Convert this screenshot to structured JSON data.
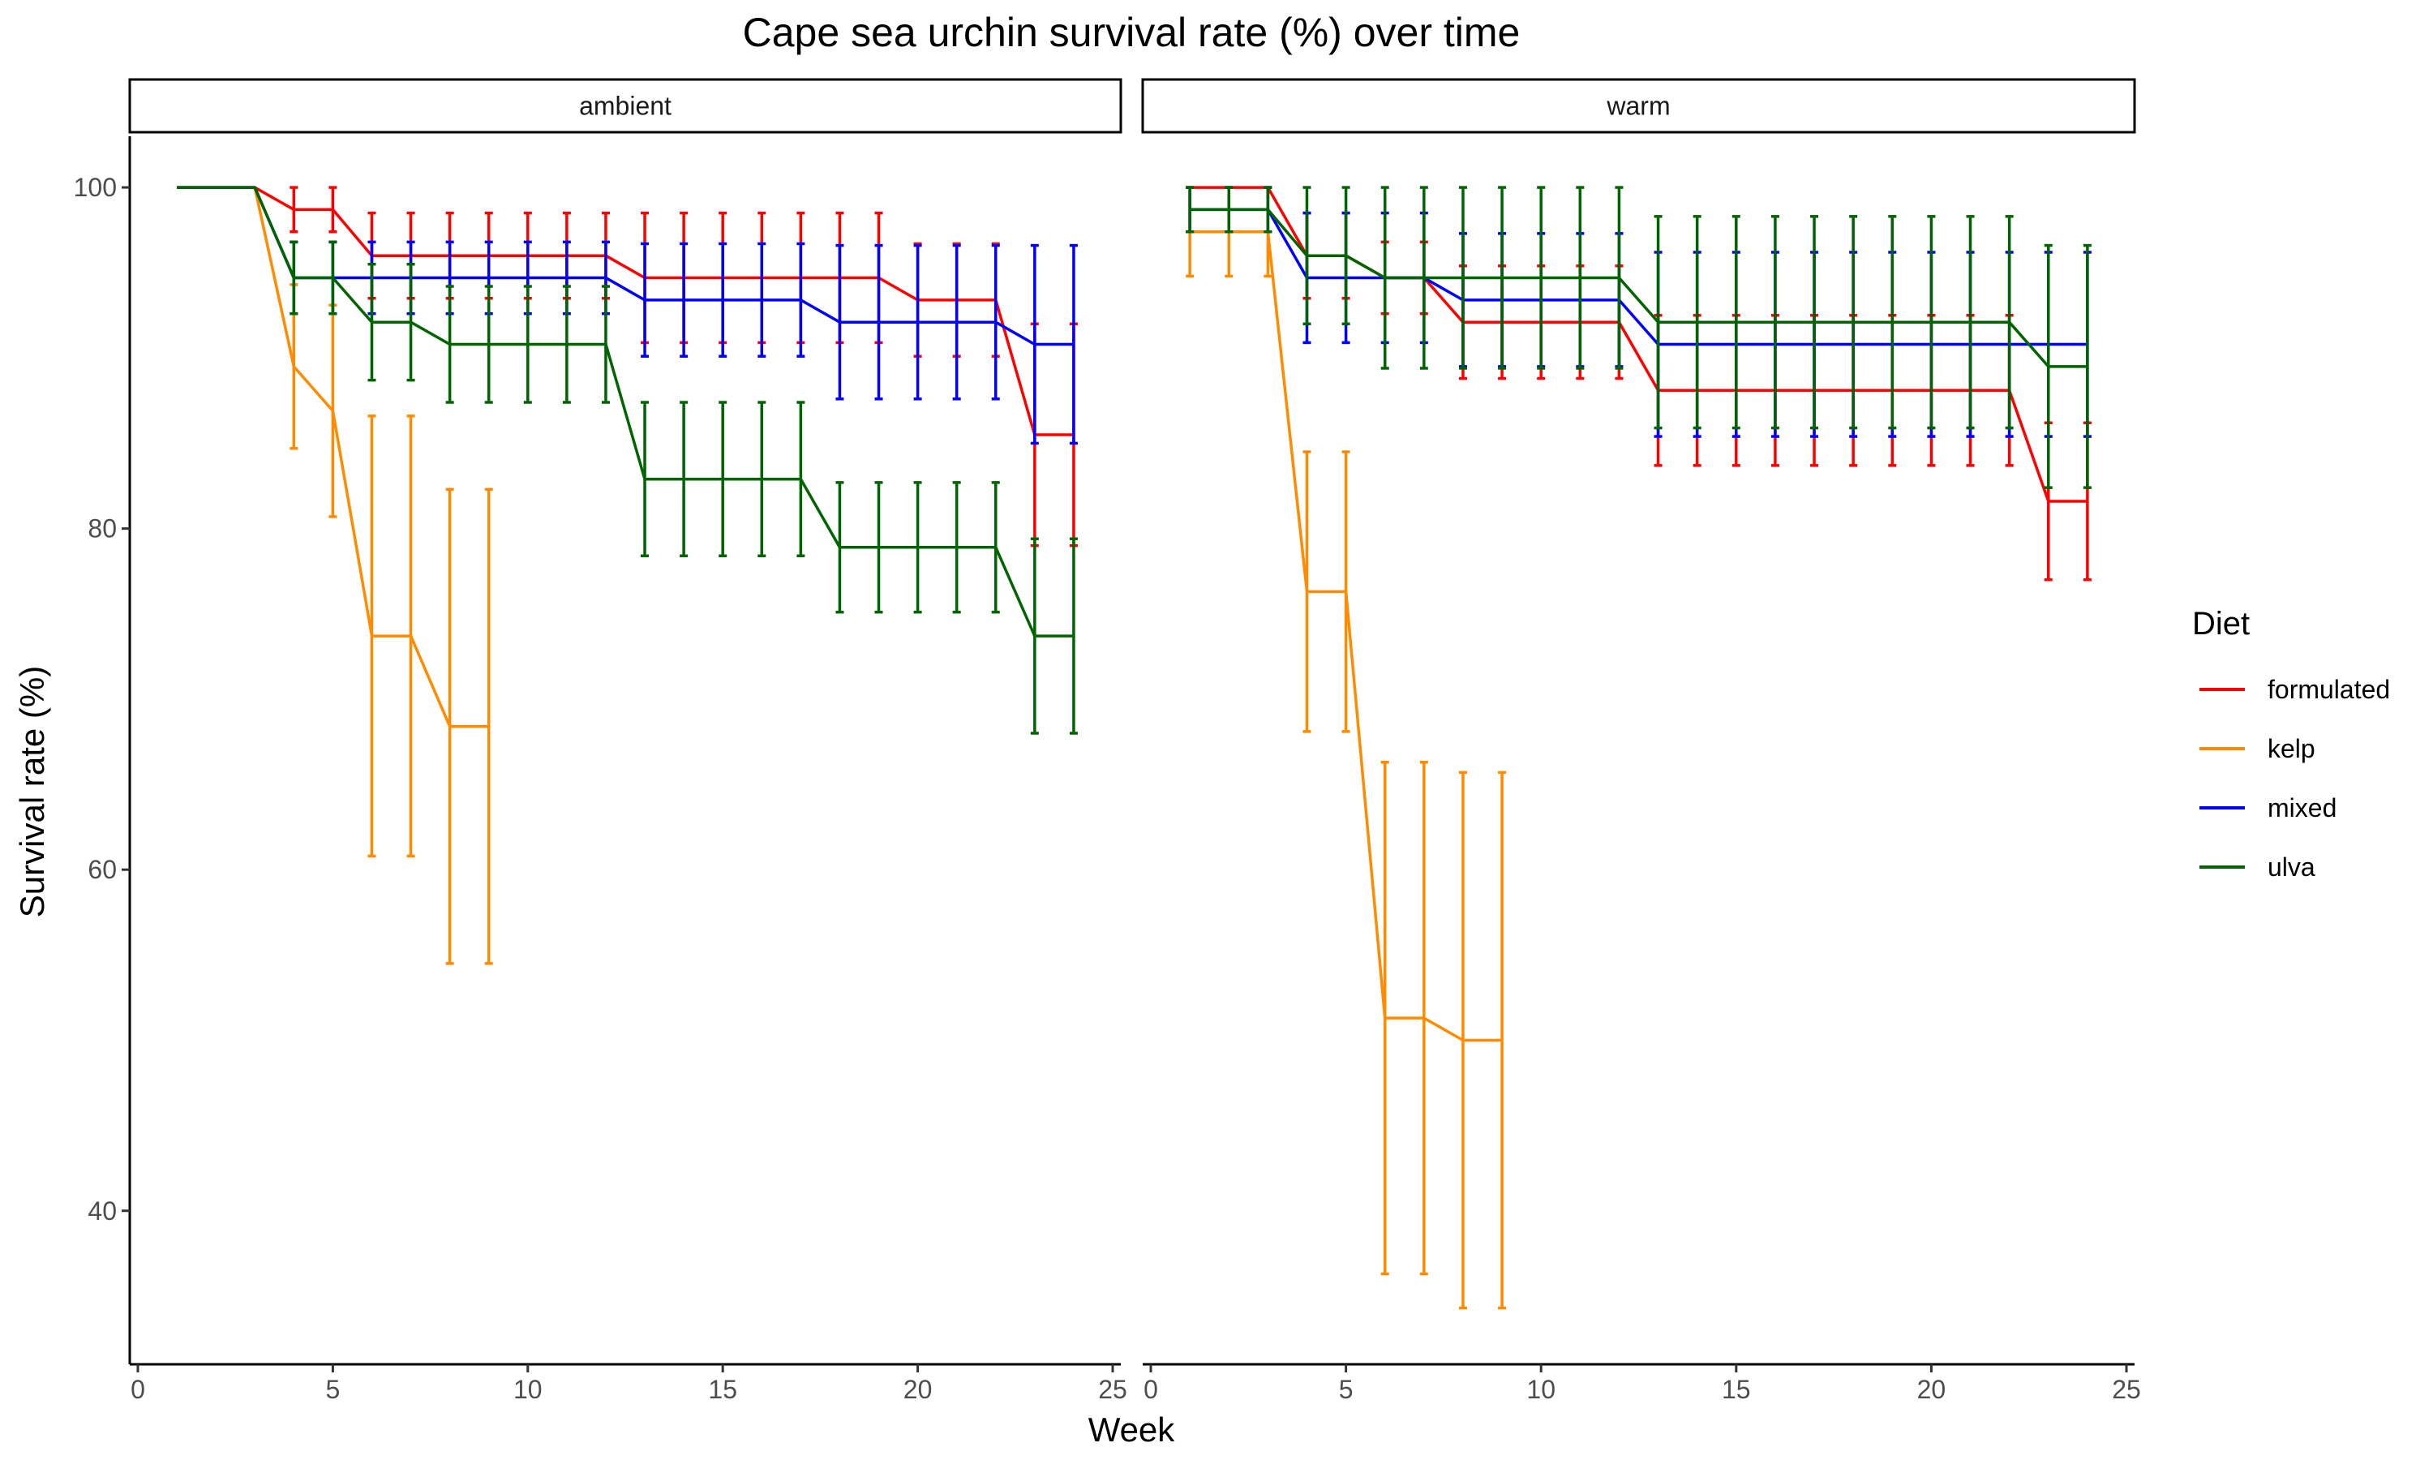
{
  "chart_data": {
    "type": "line",
    "title": "Cape sea urchin survival rate (%) over time",
    "xlabel": "Week",
    "ylabel": "Survival rate (%)",
    "xlim": [
      0,
      25
    ],
    "ylim": [
      31,
      103
    ],
    "x_ticks": [
      "0",
      "5",
      "10",
      "15",
      "20",
      "25"
    ],
    "y_ticks": [
      "40",
      "60",
      "80",
      "100"
    ],
    "grid": false,
    "legend": {
      "title": "Diet",
      "position": "right",
      "entries": [
        "formulated",
        "kelp",
        "mixed",
        "ulva"
      ]
    },
    "colors": {
      "formulated": "#ff0000",
      "kelp": "#ff8c00",
      "mixed": "#0000ff",
      "ulva": "#006400"
    },
    "panels": [
      {
        "label": "ambient",
        "series": [
          {
            "name": "formulated",
            "x": [
              1,
              2,
              3,
              4,
              5,
              6,
              7,
              8,
              9,
              10,
              11,
              12,
              13,
              14,
              15,
              16,
              17,
              18,
              19,
              20,
              21,
              22,
              23,
              24
            ],
            "y": [
              100,
              100,
              100,
              98.7,
              98.7,
              96,
              96,
              96,
              96,
              96,
              96,
              96,
              94.7,
              94.7,
              94.7,
              94.7,
              94.7,
              94.7,
              94.7,
              93.4,
              93.4,
              93.4,
              85.5,
              85.5
            ],
            "err": [
              0,
              0,
              0,
              1.3,
              1.3,
              2.5,
              2.5,
              2.5,
              2.5,
              2.5,
              2.5,
              2.5,
              3.8,
              3.8,
              3.8,
              3.8,
              3.8,
              3.8,
              3.8,
              3.3,
              3.3,
              3.3,
              6.5,
              6.5
            ]
          },
          {
            "name": "kelp",
            "x": [
              1,
              2,
              3,
              4,
              5,
              6,
              7,
              8,
              9
            ],
            "y": [
              100,
              100,
              100,
              89.5,
              86.9,
              73.7,
              73.7,
              68.4,
              68.4
            ],
            "err": [
              0,
              0,
              0,
              4.8,
              6.2,
              12.9,
              12.9,
              13.9,
              13.9
            ]
          },
          {
            "name": "mixed",
            "x": [
              1,
              2,
              3,
              4,
              5,
              6,
              7,
              8,
              9,
              10,
              11,
              12,
              13,
              14,
              15,
              16,
              17,
              18,
              19,
              20,
              21,
              22,
              23,
              24
            ],
            "y": [
              100,
              100,
              100,
              94.7,
              94.7,
              94.7,
              94.7,
              94.7,
              94.7,
              94.7,
              94.7,
              94.7,
              93.4,
              93.4,
              93.4,
              93.4,
              93.4,
              92.1,
              92.1,
              92.1,
              92.1,
              92.1,
              90.8,
              90.8
            ],
            "err": [
              0,
              0,
              0,
              2.1,
              2.1,
              2.1,
              2.1,
              2.1,
              2.1,
              2.1,
              2.1,
              2.1,
              3.3,
              3.3,
              3.3,
              3.3,
              3.3,
              4.5,
              4.5,
              4.5,
              4.5,
              4.5,
              5.8,
              5.8
            ]
          },
          {
            "name": "ulva",
            "x": [
              1,
              2,
              3,
              4,
              5,
              6,
              7,
              8,
              9,
              10,
              11,
              12,
              13,
              14,
              15,
              16,
              17,
              18,
              19,
              20,
              21,
              22,
              23,
              24
            ],
            "y": [
              100,
              100,
              100,
              94.7,
              94.7,
              92.1,
              92.1,
              90.8,
              90.8,
              90.8,
              90.8,
              90.8,
              82.9,
              82.9,
              82.9,
              82.9,
              82.9,
              78.9,
              78.9,
              78.9,
              78.9,
              78.9,
              73.7,
              73.7
            ],
            "err": [
              0,
              0,
              0,
              2.1,
              2.1,
              3.4,
              3.4,
              3.4,
              3.4,
              3.4,
              3.4,
              3.4,
              4.5,
              4.5,
              4.5,
              4.5,
              4.5,
              3.8,
              3.8,
              3.8,
              3.8,
              3.8,
              5.7,
              5.7
            ]
          }
        ]
      },
      {
        "label": "warm",
        "series": [
          {
            "name": "formulated",
            "x": [
              1,
              2,
              3,
              4,
              5,
              6,
              7,
              8,
              9,
              10,
              11,
              12,
              13,
              14,
              15,
              16,
              17,
              18,
              19,
              20,
              21,
              22,
              23,
              24
            ],
            "y": [
              100,
              100,
              100,
              96,
              96,
              94.7,
              94.7,
              92.1,
              92.1,
              92.1,
              92.1,
              92.1,
              88.1,
              88.1,
              88.1,
              88.1,
              88.1,
              88.1,
              88.1,
              88.1,
              88.1,
              88.1,
              81.6,
              81.6
            ],
            "err": [
              0,
              0,
              0,
              2.5,
              2.5,
              2.1,
              2.1,
              3.3,
              3.3,
              3.3,
              3.3,
              3.3,
              4.4,
              4.4,
              4.4,
              4.4,
              4.4,
              4.4,
              4.4,
              4.4,
              4.4,
              4.4,
              4.6,
              4.6
            ]
          },
          {
            "name": "kelp",
            "x": [
              1,
              2,
              3,
              4,
              5,
              6,
              7,
              8,
              9
            ],
            "y": [
              97.4,
              97.4,
              97.4,
              76.3,
              76.3,
              51.3,
              51.3,
              50,
              50
            ],
            "err": [
              2.6,
              2.6,
              2.6,
              8.2,
              8.2,
              15,
              15,
              15.7,
              15.7
            ]
          },
          {
            "name": "mixed",
            "x": [
              1,
              2,
              3,
              4,
              5,
              6,
              7,
              8,
              9,
              10,
              11,
              12,
              13,
              14,
              15,
              16,
              17,
              18,
              19,
              20,
              21,
              22,
              23,
              24
            ],
            "y": [
              98.7,
              98.7,
              98.7,
              94.7,
              94.7,
              94.7,
              94.7,
              93.4,
              93.4,
              93.4,
              93.4,
              93.4,
              90.8,
              90.8,
              90.8,
              90.8,
              90.8,
              90.8,
              90.8,
              90.8,
              90.8,
              90.8,
              90.8,
              90.8
            ],
            "err": [
              1.3,
              1.3,
              1.3,
              3.8,
              3.8,
              3.8,
              3.8,
              3.9,
              3.9,
              3.9,
              3.9,
              3.9,
              5.4,
              5.4,
              5.4,
              5.4,
              5.4,
              5.4,
              5.4,
              5.4,
              5.4,
              5.4,
              5.4,
              5.4
            ]
          },
          {
            "name": "ulva",
            "x": [
              1,
              2,
              3,
              4,
              5,
              6,
              7,
              8,
              9,
              10,
              11,
              12,
              13,
              14,
              15,
              16,
              17,
              18,
              19,
              20,
              21,
              22,
              23,
              24
            ],
            "y": [
              98.7,
              98.7,
              98.7,
              96,
              96,
              94.7,
              94.7,
              94.7,
              94.7,
              94.7,
              94.7,
              94.7,
              92.1,
              92.1,
              92.1,
              92.1,
              92.1,
              92.1,
              92.1,
              92.1,
              92.1,
              92.1,
              89.5,
              89.5
            ],
            "err": [
              1.3,
              1.3,
              1.3,
              4,
              4,
              5.3,
              5.3,
              5.3,
              5.3,
              5.3,
              5.3,
              5.3,
              6.2,
              6.2,
              6.2,
              6.2,
              6.2,
              6.2,
              6.2,
              6.2,
              6.2,
              6.2,
              7.1,
              7.1
            ]
          }
        ]
      }
    ]
  }
}
